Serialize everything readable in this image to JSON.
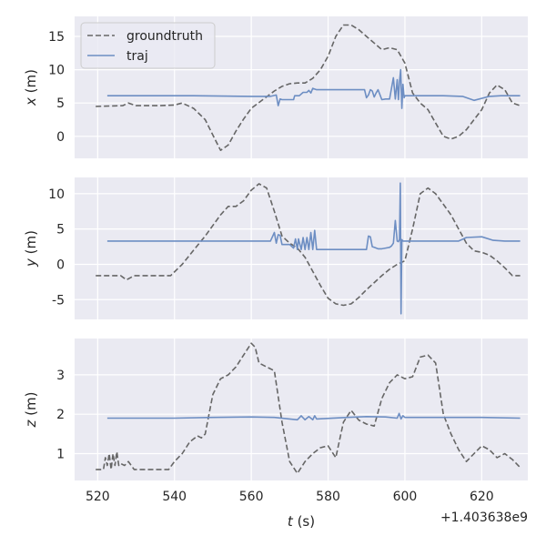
{
  "chart_data": [
    {
      "type": "line",
      "ylabel_var": "x",
      "ylabel_unit": " (m)",
      "ylim": [
        -3.3,
        18
      ],
      "xlim": [
        514,
        632
      ],
      "yticks": [
        0,
        5,
        10,
        15
      ],
      "xticks": [
        520,
        540,
        560,
        580,
        600,
        620
      ],
      "grid": true,
      "legend": {
        "placement": "top-left",
        "entries": [
          "groundtruth",
          "traj"
        ]
      },
      "series": [
        {
          "name": "groundtruth",
          "x": [
            519.5,
            526.5,
            528,
            530,
            536,
            540,
            542,
            545,
            548,
            550,
            552,
            554,
            556,
            558,
            560,
            563,
            566,
            568,
            570,
            572,
            574,
            576,
            578,
            580,
            582,
            584,
            586,
            588,
            590,
            592,
            594,
            596,
            598,
            600,
            602,
            604,
            606,
            608,
            610,
            612,
            614,
            616,
            618,
            620,
            622,
            624,
            626,
            628,
            630
          ],
          "values": [
            4.5,
            4.6,
            5,
            4.6,
            4.6,
            4.7,
            5,
            4.2,
            2.5,
            0.2,
            -2.1,
            -1.3,
            0.8,
            2.6,
            4.2,
            5.5,
            6.8,
            7.5,
            7.9,
            8,
            8,
            8.7,
            10,
            12,
            15,
            16.7,
            16.7,
            16,
            15,
            14,
            13,
            13.3,
            13,
            11,
            6.5,
            5,
            4,
            2,
            0,
            -0.4,
            0,
            1,
            2.5,
            4,
            6.5,
            7.7,
            7,
            5,
            4.6
          ]
        },
        {
          "name": "traj",
          "x": [
            522.5,
            545,
            560,
            565,
            566.5,
            567,
            567.5,
            568,
            571,
            571.3,
            572.5,
            573.5,
            574.5,
            575,
            575.5,
            576,
            577,
            577.5,
            589.5,
            590,
            590.5,
            591,
            591.5,
            592,
            592.5,
            593,
            594,
            595,
            596,
            597,
            597.5,
            598,
            598.3,
            598.6,
            598.9,
            599.2,
            599.5,
            599.8,
            600,
            605,
            610,
            615,
            618,
            622,
            625,
            630
          ],
          "values": [
            6.1,
            6.1,
            6.0,
            6.0,
            6.2,
            4.6,
            5.6,
            5.5,
            5.5,
            6.1,
            6.1,
            6.6,
            6.6,
            6.9,
            6.5,
            7.2,
            7.0,
            7.0,
            7.0,
            5.8,
            6.2,
            7.0,
            6.8,
            5.9,
            6.5,
            7.0,
            5.5,
            5.6,
            5.6,
            8.8,
            5.6,
            8.5,
            5.5,
            8.2,
            10.0,
            4.2,
            7.8,
            5.8,
            6.1,
            6.1,
            6.1,
            6.0,
            5.4,
            6.0,
            6.1,
            6.1
          ]
        }
      ]
    },
    {
      "type": "line",
      "ylabel_var": "y",
      "ylabel_unit": " (m)",
      "ylim": [
        -7.8,
        12.3
      ],
      "xlim": [
        514,
        632
      ],
      "yticks": [
        -5,
        0,
        5,
        10
      ],
      "xticks": [
        520,
        540,
        560,
        580,
        600,
        620
      ],
      "grid": true,
      "series": [
        {
          "name": "groundtruth",
          "x": [
            519.5,
            526,
            527.5,
            529.5,
            534,
            539,
            542,
            545,
            548,
            550,
            552,
            554,
            556,
            558,
            560,
            562,
            564,
            566,
            568,
            570,
            572,
            574,
            576,
            578,
            580,
            582,
            584,
            586,
            588,
            590,
            592,
            594,
            596,
            598,
            600,
            602,
            604,
            606,
            608,
            610,
            612,
            614,
            616,
            618,
            620,
            622,
            624,
            626,
            628,
            630
          ],
          "values": [
            -1.6,
            -1.6,
            -2.2,
            -1.6,
            -1.6,
            -1.6,
            0,
            2,
            4,
            5.5,
            7,
            8.2,
            8.2,
            9,
            10.5,
            11.4,
            10.8,
            7.5,
            4,
            3,
            2.3,
            1,
            -1,
            -3,
            -4.8,
            -5.6,
            -5.8,
            -5.6,
            -4.7,
            -3.6,
            -2.6,
            -1.6,
            -0.7,
            0,
            0.5,
            5,
            10,
            10.8,
            10,
            8.5,
            7,
            5,
            3,
            1.9,
            1.7,
            1.3,
            0.5,
            -0.5,
            -1.6,
            -1.6
          ]
        },
        {
          "name": "traj",
          "x": [
            522.5,
            540,
            560,
            565,
            566,
            566.5,
            567,
            567.5,
            568,
            570,
            571,
            571.5,
            572,
            572.3,
            573,
            573.5,
            574,
            574.5,
            575,
            575.5,
            576,
            576.5,
            577,
            590,
            590.5,
            591,
            591.5,
            592,
            593,
            594,
            595,
            596,
            596.5,
            597,
            597.5,
            598,
            598.3,
            598.6,
            598.8,
            599,
            599.2,
            599.5,
            600,
            605,
            610,
            614,
            616,
            620,
            623,
            626,
            630
          ],
          "values": [
            3.3,
            3.3,
            3.3,
            3.3,
            4.5,
            3.0,
            4.2,
            4.1,
            2.8,
            2.8,
            2.3,
            3.6,
            2.1,
            3.6,
            2.1,
            3.8,
            2.1,
            3.8,
            2.1,
            4.5,
            2.1,
            4.8,
            2.1,
            2.1,
            4.0,
            3.9,
            2.5,
            2.4,
            2.2,
            2.2,
            2.3,
            2.4,
            2.6,
            3.0,
            6.2,
            3.3,
            3.2,
            3.5,
            11.5,
            -7.0,
            3.5,
            3.3,
            3.3,
            3.3,
            3.3,
            3.3,
            3.8,
            3.9,
            3.4,
            3.3,
            3.3
          ]
        }
      ]
    },
    {
      "type": "line",
      "ylabel_var": "z",
      "ylabel_unit": " (m)",
      "ylim": [
        0.32,
        3.92
      ],
      "xlim": [
        514,
        632
      ],
      "yticks": [
        1,
        2,
        3
      ],
      "xticks": [
        520,
        540,
        560,
        580,
        600,
        620
      ],
      "xtick_labels": [
        "520",
        "540",
        "560",
        "580",
        "600",
        "620"
      ],
      "xlabel_var": "t",
      "xlabel_unit": " (s)",
      "offset_text": "+1.403638e9",
      "grid": true,
      "series": [
        {
          "name": "groundtruth",
          "x": [
            519.5,
            521.5,
            522,
            522.5,
            523,
            523.5,
            524,
            524.5,
            525,
            525.5,
            526,
            527,
            528,
            529.5,
            534,
            538.5,
            540,
            542,
            544,
            546,
            547,
            548,
            550,
            552,
            554,
            556,
            558,
            560,
            561,
            562,
            564,
            566,
            568,
            570,
            572,
            574,
            576,
            578,
            580,
            582,
            584,
            586,
            588,
            590,
            592,
            594,
            596,
            598,
            600,
            602,
            604,
            606,
            608,
            610,
            612,
            614,
            616,
            618,
            620,
            622,
            624,
            626,
            628,
            630
          ],
          "values": [
            0.6,
            0.6,
            0.9,
            0.7,
            1.0,
            0.6,
            1.0,
            0.7,
            1.05,
            0.7,
            0.75,
            0.7,
            0.8,
            0.6,
            0.6,
            0.6,
            0.8,
            1.0,
            1.3,
            1.45,
            1.4,
            1.5,
            2.5,
            2.9,
            3.0,
            3.2,
            3.5,
            3.8,
            3.7,
            3.3,
            3.2,
            3.1,
            1.8,
            0.8,
            0.5,
            0.8,
            1.0,
            1.15,
            1.2,
            0.9,
            1.8,
            2.1,
            1.85,
            1.75,
            1.7,
            2.4,
            2.8,
            3.0,
            2.9,
            2.95,
            3.45,
            3.5,
            3.3,
            2.0,
            1.5,
            1.1,
            0.8,
            1.0,
            1.2,
            1.1,
            0.9,
            1.0,
            0.85,
            0.65
          ]
        },
        {
          "name": "traj",
          "x": [
            522.5,
            540,
            550,
            560,
            566,
            570,
            572,
            573,
            574,
            575,
            576,
            576.5,
            577,
            585,
            590,
            595,
            598,
            598.5,
            599,
            599.5,
            600,
            610,
            620,
            630
          ],
          "values": [
            1.9,
            1.9,
            1.92,
            1.93,
            1.92,
            1.88,
            1.86,
            1.96,
            1.86,
            1.94,
            1.86,
            1.96,
            1.88,
            1.92,
            1.94,
            1.93,
            1.9,
            2.02,
            1.88,
            1.96,
            1.92,
            1.92,
            1.92,
            1.9
          ]
        }
      ]
    }
  ],
  "colors": {
    "groundtruth": "#666666",
    "traj": "#6d8ec3",
    "axes_bg": "#eaeaf2",
    "grid": "#ffffff"
  }
}
